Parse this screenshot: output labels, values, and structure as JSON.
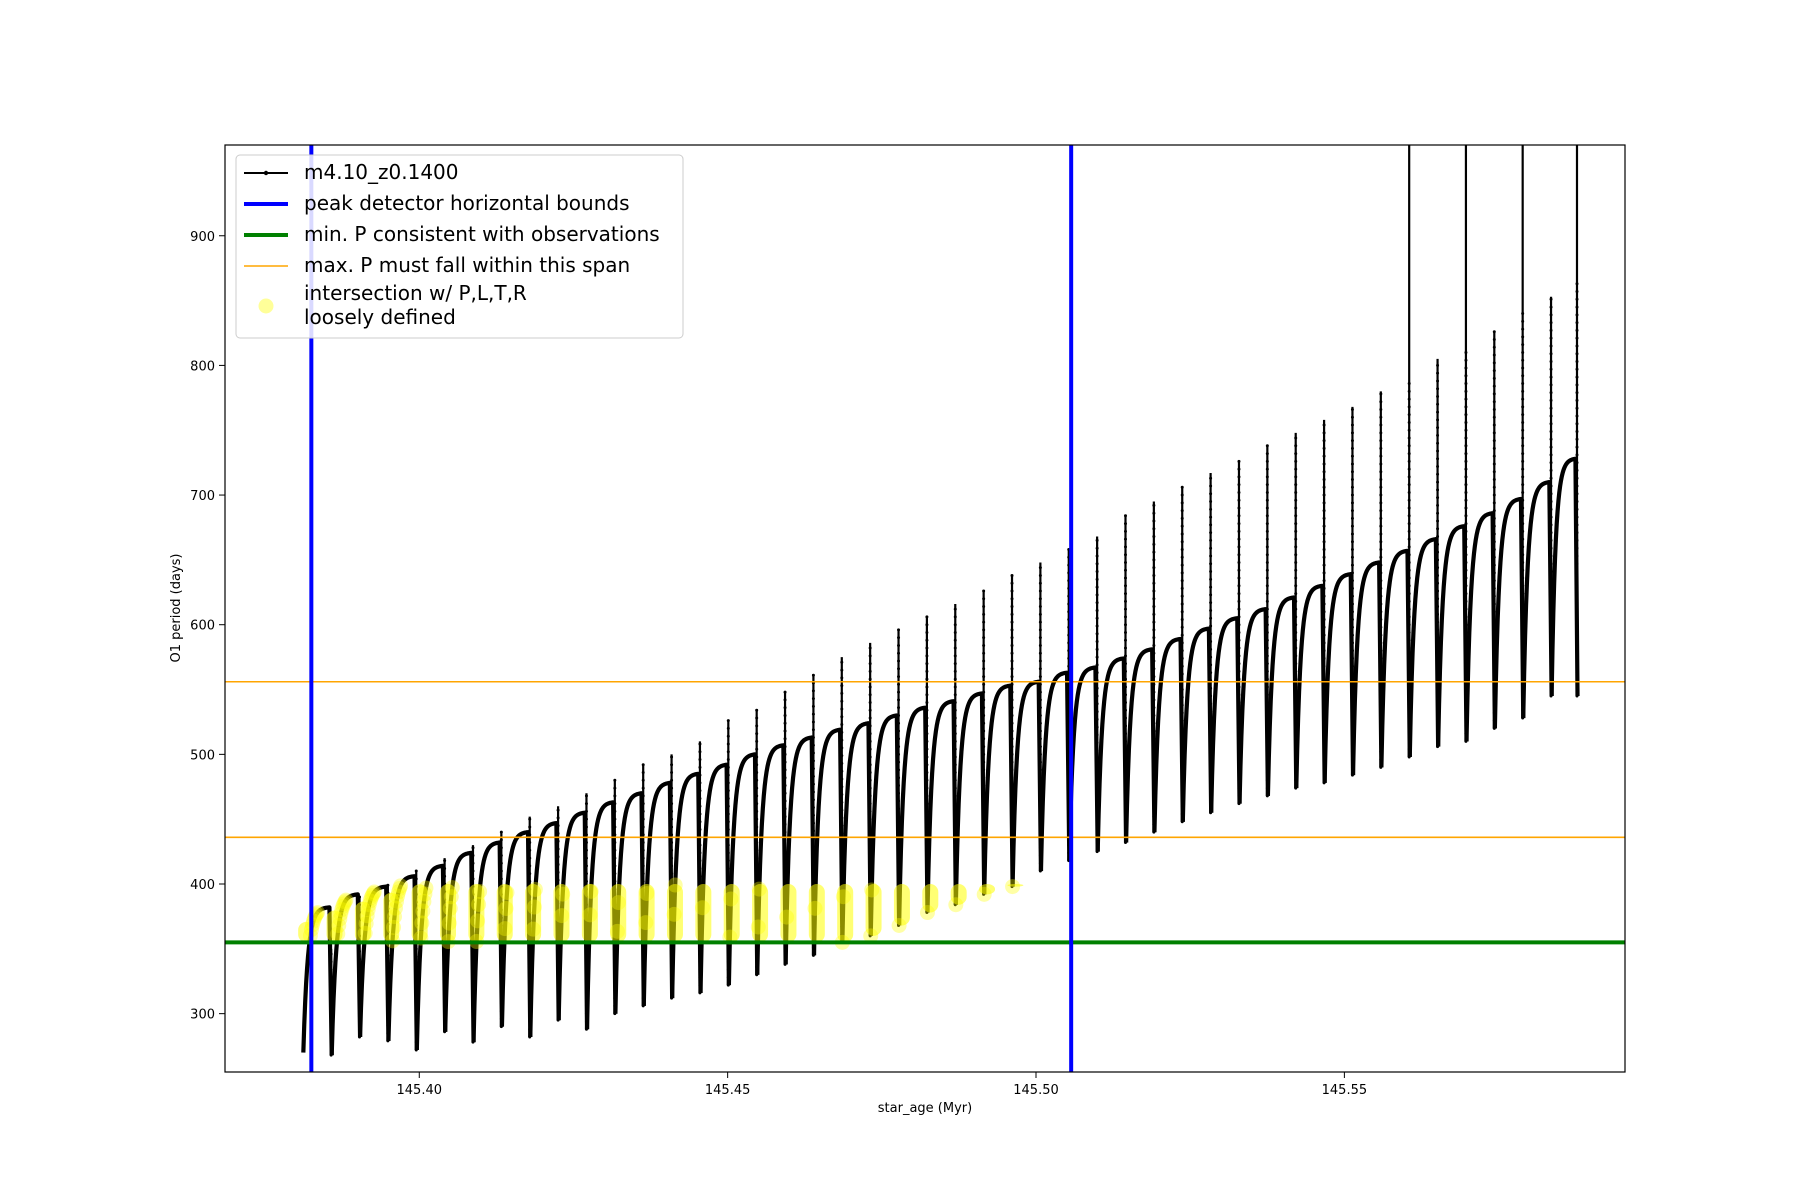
{
  "chart_data": {
    "type": "line",
    "title": "",
    "xlabel": "star_age (Myr)",
    "ylabel": "O1 period (days)",
    "xlim": [
      145.3685,
      145.5955
    ],
    "ylim": [
      255,
      970
    ],
    "xticks": [
      145.4,
      145.45,
      145.5,
      145.55
    ],
    "xtick_labels": [
      "145.40",
      "145.45",
      "145.50",
      "145.55"
    ],
    "yticks": [
      300,
      400,
      500,
      600,
      700,
      800,
      900
    ],
    "ytick_labels": [
      "300",
      "400",
      "500",
      "600",
      "700",
      "800",
      "900"
    ],
    "grid": false,
    "legend_position": "top-left",
    "legend": [
      {
        "label": "m4.10_z0.1400",
        "marker": "line-dot",
        "color": "#000000"
      },
      {
        "label": "peak detector horizontal bounds",
        "marker": "line",
        "color": "#0000ff"
      },
      {
        "label": "min. P consistent with observations",
        "marker": "line",
        "color": "#008000"
      },
      {
        "label": "max. P must fall within this span",
        "marker": "line",
        "color": "#ffa500"
      },
      {
        "label": "intersection w/ P,L,T,R\nloosely defined",
        "label_lines": [
          "intersection w/ P,L,T,R",
          "loosely defined"
        ],
        "marker": "circle",
        "color": "#ffff00"
      }
    ],
    "reference_lines": {
      "vertical_blue": {
        "x": [
          145.3825,
          145.5057
        ],
        "color": "#0000ff"
      },
      "horizontal_green": {
        "y": 355,
        "color": "#008000"
      },
      "horizontal_orange": {
        "y": [
          436,
          556
        ],
        "color": "#ffa500"
      }
    },
    "series": [
      {
        "name": "m4.10_z0.1400",
        "color": "#000000",
        "pulse_start_age": [
          145.3812,
          145.3858,
          145.3904,
          145.395,
          145.3996,
          145.4042,
          145.4088,
          145.4134,
          145.418,
          145.4226,
          145.4272,
          145.4318,
          145.4364,
          145.441,
          145.4456,
          145.4502,
          145.4548,
          145.4594,
          145.464,
          145.4686,
          145.4732,
          145.4778,
          145.4824,
          145.487,
          145.4916,
          145.4962,
          145.5008,
          145.5054,
          145.51,
          145.5146,
          145.5192,
          145.5238,
          145.5284,
          145.533,
          145.5376,
          145.5422,
          145.5468,
          145.5514,
          145.556,
          145.5606,
          145.5652,
          145.5698,
          145.5744,
          145.579,
          145.5836
        ],
        "pulse_min_period": [
          270,
          268,
          282,
          279,
          272,
          286,
          278,
          290,
          282,
          295,
          288,
          300,
          306,
          312,
          316,
          322,
          330,
          338,
          345,
          355,
          360,
          368,
          378,
          384,
          392,
          398,
          410,
          418,
          425,
          432,
          440,
          448,
          455,
          462,
          468,
          474,
          478,
          484,
          490,
          498,
          506,
          510,
          520,
          528,
          545
        ],
        "pulse_max_period": [
          382,
          392,
          398,
          406,
          414,
          424,
          432,
          440,
          447,
          455,
          463,
          470,
          478,
          485,
          492,
          500,
          507,
          513,
          519,
          524,
          530,
          536,
          541,
          547,
          553,
          556,
          563,
          567,
          574,
          581,
          589,
          597,
          605,
          612,
          621,
          630,
          639,
          648,
          657,
          666,
          676,
          686,
          697,
          710,
          728
        ],
        "pulse_spike_period": [
          350,
          390,
          400,
          410,
          420,
          430,
          440,
          452,
          460,
          470,
          480,
          492,
          500,
          510,
          526,
          535,
          548,
          562,
          575,
          586,
          596,
          606,
          616,
          626,
          638,
          648,
          658,
          668,
          685,
          695,
          706,
          717,
          726,
          738,
          748,
          758,
          768,
          780,
          790,
          805,
          813,
          826,
          841,
          853,
          864
        ]
      },
      {
        "name": "intersection w/ P,L,T,R\nloosely defined",
        "color": "#ffff00",
        "points_note": "highlighted sections of each pulse between the minimum P line and the peak detector right bound"
      }
    ]
  }
}
